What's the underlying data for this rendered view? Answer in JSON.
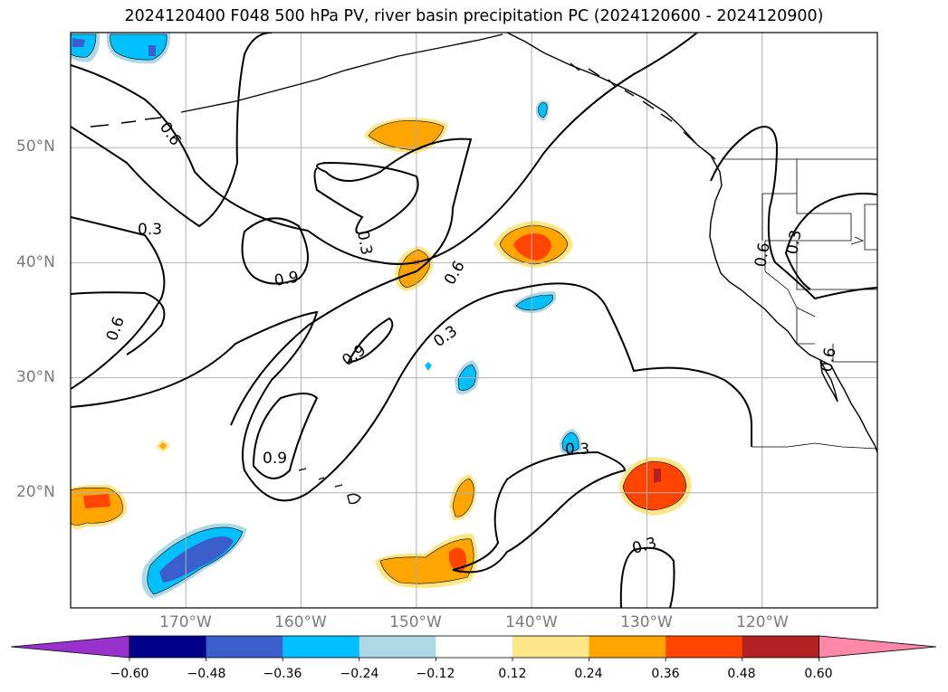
{
  "title": "2024120400 F048 500 hPa PV, river basin precipitation PC (2024120600 - 2024120900)",
  "map": {
    "projection": "PlateCarree",
    "lon_range": [
      -180,
      -110
    ],
    "lat_range": [
      10,
      60
    ],
    "gridlines": true,
    "lat_ticks": [
      {
        "value": 20,
        "label": "20°N"
      },
      {
        "value": 30,
        "label": "30°N"
      },
      {
        "value": 40,
        "label": "40°N"
      },
      {
        "value": 50,
        "label": "50°N"
      }
    ],
    "lon_ticks": [
      {
        "value": -170,
        "label": "170°W"
      },
      {
        "value": -160,
        "label": "160°W"
      },
      {
        "value": -150,
        "label": "150°W"
      },
      {
        "value": -140,
        "label": "140°W"
      },
      {
        "value": -130,
        "label": "130°W"
      },
      {
        "value": -120,
        "label": "120°W"
      }
    ],
    "pv_contour_labels": [
      "0.3",
      "0.6",
      "0.9"
    ]
  },
  "colorbar": {
    "labels": [
      "−0.60",
      "−0.48",
      "−0.36",
      "−0.24",
      "−0.12",
      "0.12",
      "0.24",
      "0.36",
      "0.48",
      "0.60"
    ],
    "colors": [
      "#9932cc",
      "#00008b",
      "#3a5fcd",
      "#00bfff",
      "#add8e6",
      "#ffffff",
      "#fde68a",
      "#ffa500",
      "#ff4500",
      "#b22222",
      "#ff88aa"
    ],
    "extend": "both"
  }
}
